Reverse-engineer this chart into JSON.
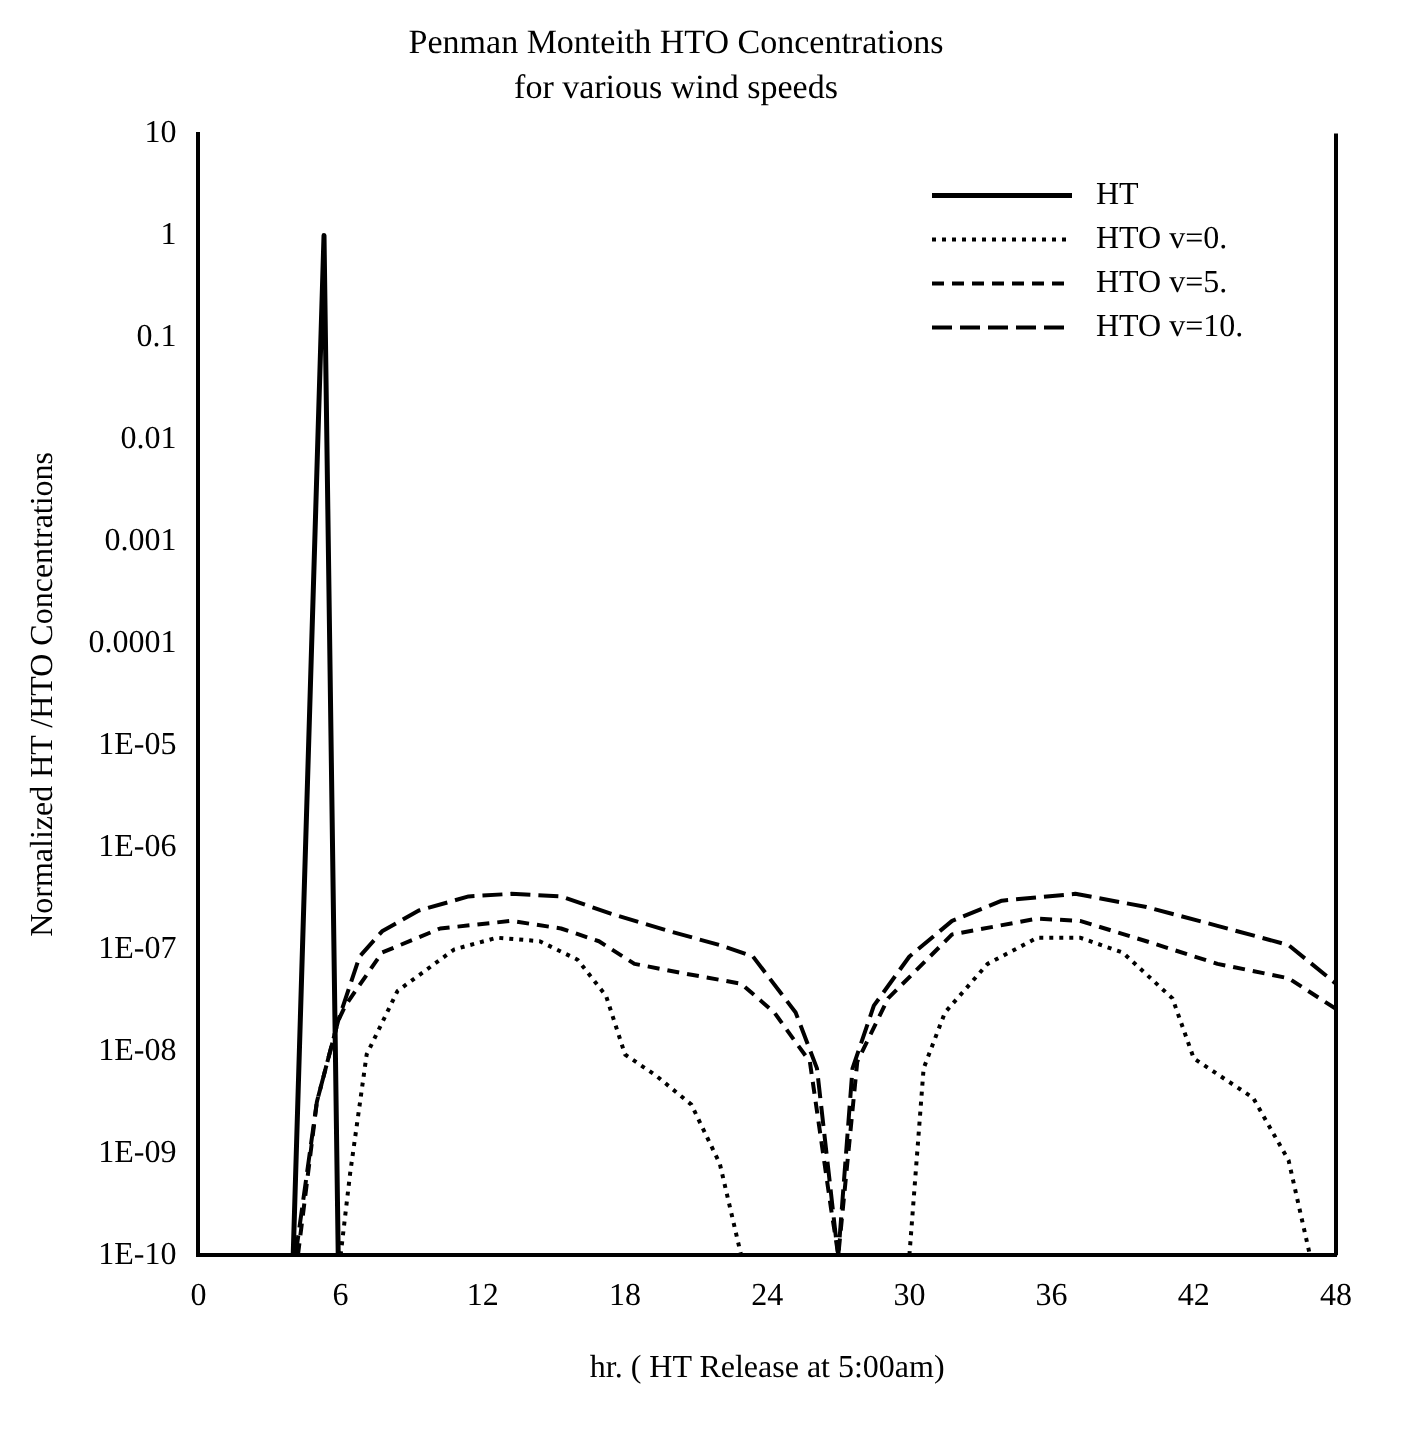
{
  "chart_data": {
    "type": "line",
    "title": "Penman Monteith HTO Concentrations",
    "subtitle": "for various wind speeds",
    "xlabel": "hr. ( HT Release at 5:00am)",
    "ylabel": "Normalized HT /HTO Concentrations",
    "log": "y",
    "xlim": [
      0,
      48
    ],
    "xticks": [
      0,
      6,
      12,
      18,
      24,
      30,
      36,
      42,
      48
    ],
    "ylim": [
      1e-10,
      10
    ],
    "yticks": [
      10,
      1,
      0.1,
      0.01,
      0.001,
      0.0001,
      {
        "value": 1e-05,
        "label": "1E-05"
      },
      {
        "value": 1e-06,
        "label": "1E-06"
      },
      {
        "value": 1e-07,
        "label": "1E-07"
      },
      {
        "value": 1e-08,
        "label": "1E-08"
      },
      {
        "value": 1e-09,
        "label": "1E-09"
      },
      {
        "value": 1e-10,
        "label": "1E-10"
      }
    ],
    "grid": false,
    "legend": "top right",
    "series": [
      {
        "name": "HT",
        "color": "#000000",
        "line_style": "solid",
        "x": [
          4,
          5.3,
          5.9
        ],
        "values": [
          1e-10,
          1,
          1e-10
        ]
      },
      {
        "name": "HTO v=0.",
        "color": "#000000",
        "line_style": "dotted",
        "x": [
          6,
          6.4,
          7.1,
          8.4,
          10.8,
          12.6,
          14.4,
          16,
          17.2,
          18,
          19.3,
          20.8,
          22,
          22.9,
          26.5,
          30,
          30.6,
          31.5,
          33.3,
          35.4,
          37.2,
          39,
          41.1,
          42,
          44.5,
          46,
          46.9
        ],
        "values": [
          1e-10,
          6.3e-10,
          9.3e-09,
          3.9e-08,
          1e-07,
          1.3e-07,
          1.2e-07,
          7.9e-08,
          3.5e-08,
          9.3e-09,
          5.8e-09,
          3e-09,
          7.9e-10,
          1e-10,
          null,
          1e-10,
          6.8e-09,
          2.4e-08,
          7.2e-08,
          1.3e-07,
          1.3e-07,
          9.3e-08,
          3.3e-08,
          8.5e-09,
          3.5e-09,
          8.5e-10,
          1e-10
        ]
      },
      {
        "name": "HTO v=5.",
        "color": "#000000",
        "line_style": "dashed",
        "x": [
          4.2,
          5,
          5.9,
          6.2,
          7.75,
          10.2,
          13.2,
          15.3,
          16.9,
          18.4,
          20.5,
          22.9,
          24.3,
          25.8,
          26.7,
          27,
          27.8,
          29.1,
          31.8,
          35.4,
          37.2,
          40,
          43,
          46,
          48
        ],
        "values": [
          1e-10,
          3.2e-09,
          2e-08,
          2.8e-08,
          9.3e-08,
          1.6e-07,
          1.9e-07,
          1.6e-07,
          1.2e-07,
          7.2e-08,
          5.8e-08,
          4.6e-08,
          2.4e-08,
          7.9e-09,
          2.8e-10,
          1e-10,
          7.9e-09,
          3.3e-08,
          1.4e-07,
          2e-07,
          1.9e-07,
          1.2e-07,
          7.2e-08,
          5.2e-08,
          2.6e-08
        ]
      },
      {
        "name": "HTO v=10.",
        "color": "#000000",
        "line_style": "dashed",
        "x": [
          4.1,
          5,
          5.9,
          6.8,
          7.75,
          9.3,
          11.4,
          13.2,
          15.3,
          17.5,
          19.9,
          22,
          23.4,
          25.2,
          26.1,
          26.9,
          27,
          27.6,
          28.5,
          30,
          31.8,
          33.9,
          37,
          40,
          43,
          46,
          48
        ],
        "values": [
          1e-10,
          3.2e-09,
          2e-08,
          8.5e-08,
          1.5e-07,
          2.4e-07,
          3.3e-07,
          3.5e-07,
          3.3e-07,
          2.2e-07,
          1.5e-07,
          1.1e-07,
          8.5e-08,
          2.4e-08,
          6.8e-09,
          1.5e-10,
          1e-10,
          6.8e-09,
          2.8e-08,
          8.5e-08,
          1.9e-07,
          3e-07,
          3.5e-07,
          2.6e-07,
          1.7e-07,
          1.1e-07,
          4.6e-08
        ]
      }
    ]
  }
}
